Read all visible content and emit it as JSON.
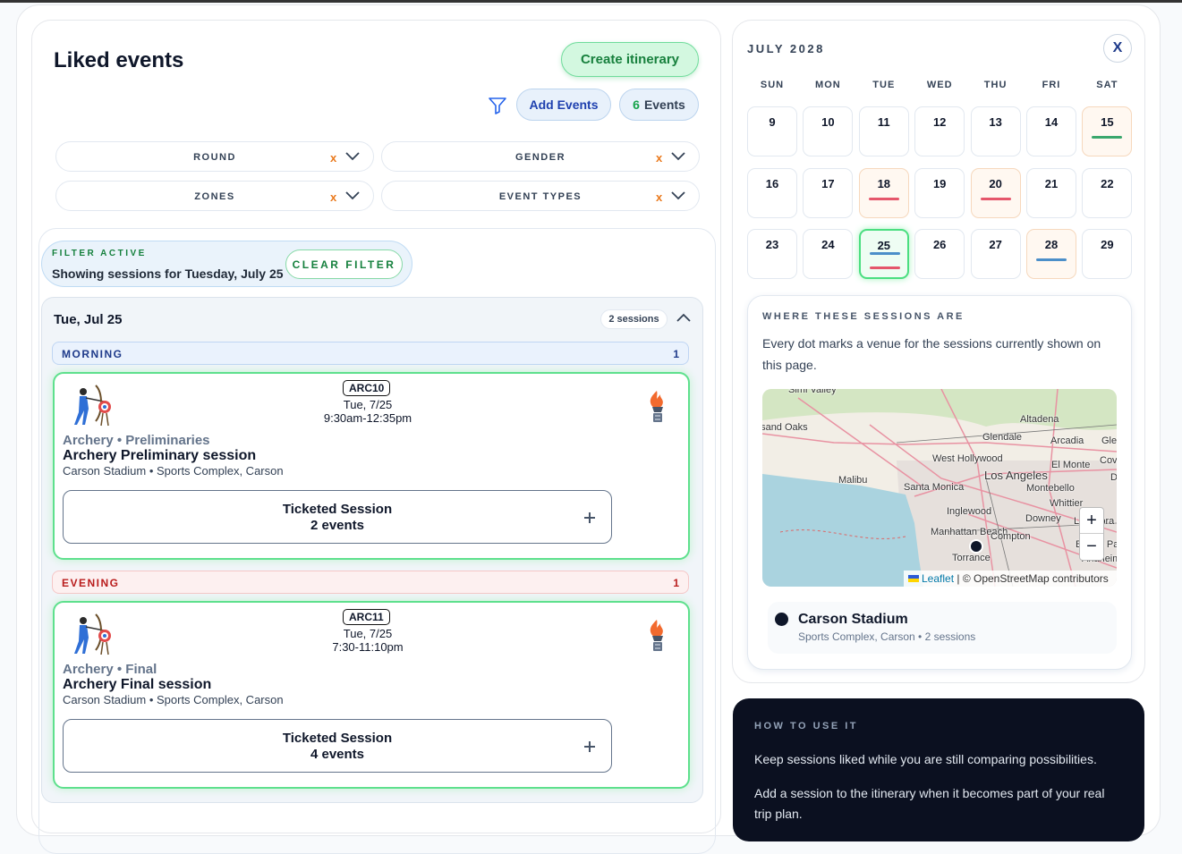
{
  "header": {
    "title": "Liked events",
    "create_button": "Create itinerary",
    "add_button": "Add Events",
    "count": "6",
    "count_label": "Events"
  },
  "filters": [
    {
      "label": "ROUND",
      "clear": "x"
    },
    {
      "label": "GENDER",
      "clear": "x"
    },
    {
      "label": "ZONES",
      "clear": "x"
    },
    {
      "label": "EVENT TYPES",
      "clear": "x"
    }
  ],
  "filter_banner": {
    "kicker": "FILTER ACTIVE",
    "text": "Showing sessions for Tuesday, July 25",
    "button": "CLEAR FILTER"
  },
  "day": {
    "title": "Tue, Jul 25",
    "badge": "2 sessions",
    "groups": [
      {
        "name": "MORNING",
        "count": 1,
        "tone": "morning",
        "sessions": [
          {
            "code": "ARC10",
            "date": "Tue, 7/25",
            "time": "9:30am-12:35pm",
            "category": "Archery • Preliminaries",
            "title": "Archery Preliminary session",
            "venue": "Carson Stadium • Sports Complex, Carson",
            "ticket_title": "Ticketed Session",
            "ticket_events": "2 events"
          }
        ]
      },
      {
        "name": "EVENING",
        "count": 1,
        "tone": "evening",
        "sessions": [
          {
            "code": "ARC11",
            "date": "Tue, 7/25",
            "time": "7:30-11:10pm",
            "category": "Archery • Final",
            "title": "Archery Final session",
            "venue": "Carson Stadium • Sports Complex, Carson",
            "ticket_title": "Ticketed Session",
            "ticket_events": "4 events"
          }
        ]
      }
    ]
  },
  "calendar": {
    "month": "JULY 2028",
    "close": "X",
    "weekdays": [
      "SUN",
      "MON",
      "TUE",
      "WED",
      "THU",
      "FRI",
      "SAT"
    ],
    "days": [
      {
        "day": 9
      },
      {
        "day": 10
      },
      {
        "day": 11
      },
      {
        "day": 12
      },
      {
        "day": 13
      },
      {
        "day": 14
      },
      {
        "day": 15,
        "tint": true,
        "bars": [
          "#3aa76d"
        ]
      },
      {
        "day": 16
      },
      {
        "day": 17
      },
      {
        "day": 18,
        "tint": true,
        "bars": [
          "#e5566b"
        ]
      },
      {
        "day": 19
      },
      {
        "day": 20,
        "tint": true,
        "bars": [
          "#e5566b"
        ]
      },
      {
        "day": 21
      },
      {
        "day": 22
      },
      {
        "day": 23
      },
      {
        "day": 24
      },
      {
        "day": 25,
        "selected": true,
        "bars": [
          "#4b8fc9",
          "#e5566b"
        ]
      },
      {
        "day": 26
      },
      {
        "day": 27
      },
      {
        "day": 28,
        "tint": true,
        "bars": [
          "#4b8fc9"
        ]
      },
      {
        "day": 29
      }
    ]
  },
  "map": {
    "title": "WHERE THESE SESSIONS ARE",
    "text": "Every dot marks a venue for the sessions currently shown on this page.",
    "labels": [
      "Simi Valley",
      "Thousand Oaks",
      "Altadena",
      "Glendale",
      "Arcadia",
      "Glendora",
      "West Hollywood",
      "El Monte",
      "Covina",
      "Los Angeles",
      "Malibu",
      "Santa Monica",
      "Montebello",
      "Diamond Bar",
      "Whittier",
      "Inglewood",
      "Downey",
      "La Habra",
      "Manhattan Beach",
      "Compton",
      "Buena Park",
      "Torrance",
      "Anaheim"
    ],
    "attribution_link": "Leaflet",
    "attribution": "| © OpenStreetMap contributors",
    "zoom_in": "+",
    "zoom_out": "−",
    "venue": {
      "name": "Carson Stadium",
      "detail": "Sports Complex, Carson • 2 sessions"
    }
  },
  "howto": {
    "kicker": "HOW TO USE IT",
    "paragraphs": [
      "Keep sessions liked while you are still comparing possibilities.",
      "Add a session to the itinerary when it becomes part of your real trip plan."
    ]
  }
}
